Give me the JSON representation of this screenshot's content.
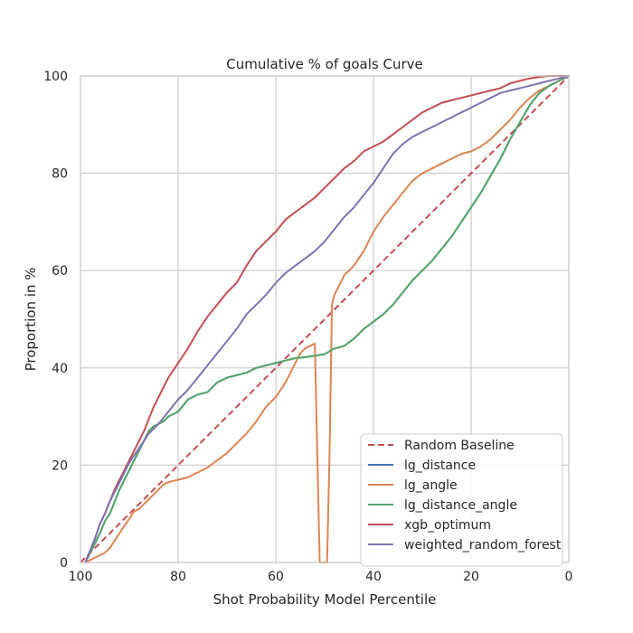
{
  "chart_data": {
    "type": "line",
    "title": "Cumulative % of goals Curve",
    "xlabel": "Shot Probability Model Percentile",
    "ylabel": "Proportion in %",
    "xlim": [
      100,
      0
    ],
    "ylim": [
      0,
      100
    ],
    "x_ticks": [
      100,
      80,
      60,
      40,
      20,
      0
    ],
    "y_ticks": [
      0,
      20,
      40,
      60,
      80,
      100
    ],
    "grid": true,
    "legend_position": "lower-right",
    "series": [
      {
        "name": "Random Baseline",
        "color": "#c44e52",
        "dashed": true,
        "x": [
          100,
          0
        ],
        "y": [
          0,
          100
        ]
      },
      {
        "name": "lg_distance",
        "color": "#4c72b0",
        "dashed": false,
        "x": [
          99,
          98,
          97,
          96,
          95,
          94,
          93,
          92,
          91,
          90,
          89,
          88,
          87,
          86,
          85,
          84,
          83,
          82,
          80,
          78,
          76,
          74,
          72,
          70,
          68,
          66,
          64,
          62,
          60,
          58,
          56,
          54,
          52,
          50,
          48,
          47,
          46,
          44,
          42,
          40,
          38,
          36,
          34,
          32,
          30,
          28,
          26,
          24,
          22,
          20,
          18,
          16,
          14,
          12,
          10,
          8,
          6,
          4,
          2,
          1,
          0
        ],
        "y": [
          0,
          2,
          4,
          6,
          8.5,
          10,
          12.5,
          15,
          17,
          19,
          21,
          23,
          25,
          27,
          28,
          28.5,
          29,
          30,
          31,
          33.5,
          34.5,
          35,
          37,
          38,
          38.5,
          39,
          40,
          40.5,
          41,
          41.5,
          42,
          42.2,
          42.5,
          42.8,
          44,
          44.2,
          44.5,
          46,
          48,
          49.5,
          51,
          53,
          55.5,
          58,
          60,
          62,
          64.5,
          67,
          70,
          73,
          76,
          79.5,
          83,
          87,
          90.5,
          94,
          96.5,
          98,
          99,
          99.5,
          100
        ]
      },
      {
        "name": "lg_angle",
        "color": "#dd8452",
        "dashed": false,
        "x": [
          99,
          98,
          97,
          96,
          95,
          94,
          93,
          92,
          91,
          90,
          89,
          88,
          87,
          86,
          85,
          84,
          83,
          82,
          80,
          78,
          76,
          74,
          72,
          70,
          68,
          66,
          64,
          62,
          60,
          58,
          56,
          55,
          54,
          53,
          52,
          51.5,
          51,
          50.5,
          49.5,
          49,
          48.5,
          48,
          47,
          46,
          44,
          42,
          40,
          38,
          36,
          34,
          32,
          30,
          28,
          26,
          24,
          22,
          20,
          18,
          16,
          14,
          12,
          10,
          8,
          6,
          4,
          2,
          0
        ],
        "y": [
          0,
          0.5,
          1,
          1.5,
          2,
          3,
          4.5,
          6,
          7.5,
          9,
          10.5,
          11,
          12,
          13,
          14,
          15,
          16,
          16.5,
          17,
          17.5,
          18.5,
          19.5,
          21,
          22.5,
          24.5,
          26.5,
          29,
          32,
          34,
          37,
          41,
          43,
          44,
          44.5,
          45,
          22,
          0,
          0,
          0,
          22,
          53,
          55,
          57,
          59,
          61,
          64,
          68,
          71,
          73.5,
          76,
          78.5,
          80,
          81,
          82,
          83,
          84,
          84.5,
          85.5,
          87,
          89,
          91,
          93.5,
          95.5,
          97,
          98,
          99,
          100
        ]
      },
      {
        "name": "lg_distance_angle",
        "color": "#55a868",
        "dashed": false,
        "x": [
          99,
          98,
          97,
          96,
          95,
          94,
          93,
          92,
          91,
          90,
          89,
          88,
          87,
          86,
          85,
          84,
          83,
          82,
          80,
          78,
          76,
          74,
          72,
          70,
          68,
          66,
          64,
          62,
          60,
          58,
          56,
          54,
          52,
          50,
          48,
          47,
          46,
          44,
          42,
          40,
          38,
          36,
          34,
          32,
          30,
          28,
          26,
          24,
          22,
          20,
          18,
          16,
          14,
          12,
          10,
          8,
          6,
          4,
          2,
          1,
          0
        ],
        "y": [
          0,
          2,
          4,
          6,
          8.5,
          10,
          12.5,
          15,
          17,
          19,
          21,
          23,
          25,
          27,
          28,
          28.5,
          29,
          30,
          31,
          33.5,
          34.5,
          35,
          37,
          38,
          38.5,
          39,
          40,
          40.5,
          41,
          41.5,
          42,
          42.2,
          42.5,
          42.8,
          44,
          44.2,
          44.5,
          46,
          48,
          49.5,
          51,
          53,
          55.5,
          58,
          60,
          62,
          64.5,
          67,
          70,
          73,
          76,
          79.5,
          83,
          87,
          90.5,
          94,
          96.5,
          98,
          99,
          99.5,
          100
        ]
      },
      {
        "name": "xgb_optimum",
        "color": "#c44e52",
        "dashed": false,
        "x": [
          99,
          98,
          97,
          96,
          95,
          94,
          93,
          92,
          91,
          90,
          89,
          88,
          87,
          86,
          85,
          84,
          82,
          80,
          78,
          76,
          74,
          72,
          70,
          68,
          66,
          64,
          62,
          60,
          58,
          56,
          54,
          52,
          50,
          48,
          46,
          44,
          42,
          40,
          38,
          36,
          34,
          32,
          30,
          28,
          26,
          24,
          22,
          20,
          18,
          16,
          14,
          12,
          10,
          8,
          6,
          4,
          2,
          0
        ],
        "y": [
          0,
          2.5,
          5,
          8,
          10,
          12.5,
          15,
          17,
          19,
          21,
          23,
          25,
          27,
          29.5,
          32,
          34,
          38,
          41,
          44,
          47.5,
          50.5,
          53,
          55.5,
          57.5,
          61,
          64,
          66,
          68,
          70.5,
          72,
          73.5,
          75,
          77,
          79,
          81,
          82.5,
          84.5,
          85.5,
          86.5,
          88,
          89.5,
          91,
          92.5,
          93.5,
          94.5,
          95,
          95.5,
          96,
          96.5,
          97,
          97.5,
          98.5,
          99,
          99.5,
          99.8,
          100,
          100,
          100
        ]
      },
      {
        "name": "weighted_random_forest",
        "color": "#8172b3",
        "dashed": false,
        "x": [
          99,
          98,
          97,
          96,
          95,
          94,
          93,
          92,
          91,
          90,
          89,
          88,
          87,
          86,
          85,
          84,
          82,
          80,
          78,
          76,
          74,
          72,
          70,
          68,
          66,
          64,
          62,
          60,
          58,
          56,
          54,
          52,
          50,
          48,
          46,
          44,
          42,
          40,
          38,
          36,
          34,
          32,
          30,
          28,
          26,
          24,
          22,
          20,
          18,
          16,
          14,
          12,
          10,
          8,
          6,
          4,
          2,
          0
        ],
        "y": [
          0,
          2.5,
          5,
          8,
          10,
          12.5,
          14.5,
          16.5,
          18.5,
          20.5,
          22,
          23.5,
          25,
          26.5,
          27.5,
          28.5,
          31,
          33.5,
          35.5,
          38,
          40.5,
          43,
          45.5,
          48,
          51,
          53,
          55,
          57.5,
          59.5,
          61,
          62.5,
          64,
          66,
          68.5,
          71,
          73,
          75.5,
          78,
          81,
          84,
          86,
          87.5,
          88.5,
          89.5,
          90.5,
          91.5,
          92.5,
          93.5,
          94.5,
          95.5,
          96.5,
          97,
          97.5,
          98,
          98.5,
          99,
          99.5,
          100
        ]
      }
    ]
  }
}
